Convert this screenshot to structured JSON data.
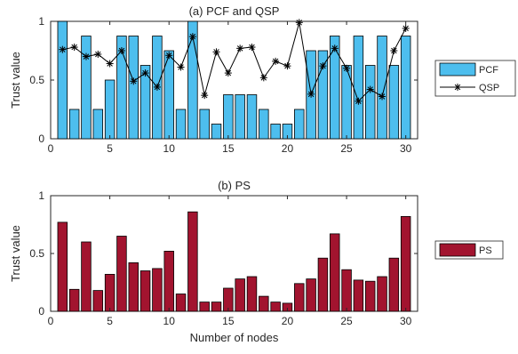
{
  "chart_data": [
    {
      "type": "bar",
      "title": "(a) PCF and QSP",
      "ylabel": "Trust value",
      "xlabel": "",
      "xlim": [
        0,
        31
      ],
      "ylim": [
        0,
        1
      ],
      "xticks": [
        0,
        5,
        10,
        15,
        20,
        25,
        30
      ],
      "yticks": [
        0,
        0.5,
        1
      ],
      "x": [
        1,
        2,
        3,
        4,
        5,
        6,
        7,
        8,
        9,
        10,
        11,
        12,
        13,
        14,
        15,
        16,
        17,
        18,
        19,
        20,
        21,
        22,
        23,
        24,
        25,
        26,
        27,
        28,
        29,
        30
      ],
      "series": [
        {
          "name": "PCF",
          "mark": "bar",
          "color": "#4DBEEE",
          "values": [
            1.0,
            0.25,
            0.875,
            0.25,
            0.5,
            0.875,
            0.875,
            0.625,
            0.875,
            0.75,
            0.25,
            1.0,
            0.25,
            0.125,
            0.375,
            0.375,
            0.375,
            0.25,
            0.125,
            0.125,
            0.25,
            0.75,
            0.75,
            0.875,
            0.625,
            0.875,
            0.625,
            0.875,
            0.625,
            0.875
          ]
        },
        {
          "name": "QSP",
          "mark": "line-star",
          "color": "#000000",
          "values": [
            0.76,
            0.78,
            0.7,
            0.72,
            0.64,
            0.75,
            0.49,
            0.56,
            0.44,
            0.71,
            0.61,
            0.87,
            0.37,
            0.74,
            0.56,
            0.77,
            0.78,
            0.52,
            0.66,
            0.62,
            0.99,
            0.38,
            0.62,
            0.77,
            0.6,
            0.32,
            0.42,
            0.36,
            0.75,
            0.94
          ]
        }
      ],
      "legend": {
        "placement": "right"
      }
    },
    {
      "type": "bar",
      "title": "(b) PS",
      "ylabel": "Trust value",
      "xlabel": "Number of nodes",
      "xlim": [
        0,
        31
      ],
      "ylim": [
        0,
        1
      ],
      "xticks": [
        0,
        5,
        10,
        15,
        20,
        25,
        30
      ],
      "yticks": [
        0,
        0.5,
        1
      ],
      "x": [
        1,
        2,
        3,
        4,
        5,
        6,
        7,
        8,
        9,
        10,
        11,
        12,
        13,
        14,
        15,
        16,
        17,
        18,
        19,
        20,
        21,
        22,
        23,
        24,
        25,
        26,
        27,
        28,
        29,
        30
      ],
      "series": [
        {
          "name": "PS",
          "mark": "bar",
          "color": "#A2142F",
          "values": [
            0.77,
            0.19,
            0.6,
            0.18,
            0.32,
            0.65,
            0.42,
            0.35,
            0.37,
            0.52,
            0.15,
            0.86,
            0.08,
            0.08,
            0.2,
            0.28,
            0.3,
            0.13,
            0.08,
            0.07,
            0.24,
            0.28,
            0.46,
            0.67,
            0.36,
            0.27,
            0.26,
            0.3,
            0.46,
            0.82
          ]
        }
      ],
      "legend": {
        "placement": "right"
      }
    }
  ]
}
